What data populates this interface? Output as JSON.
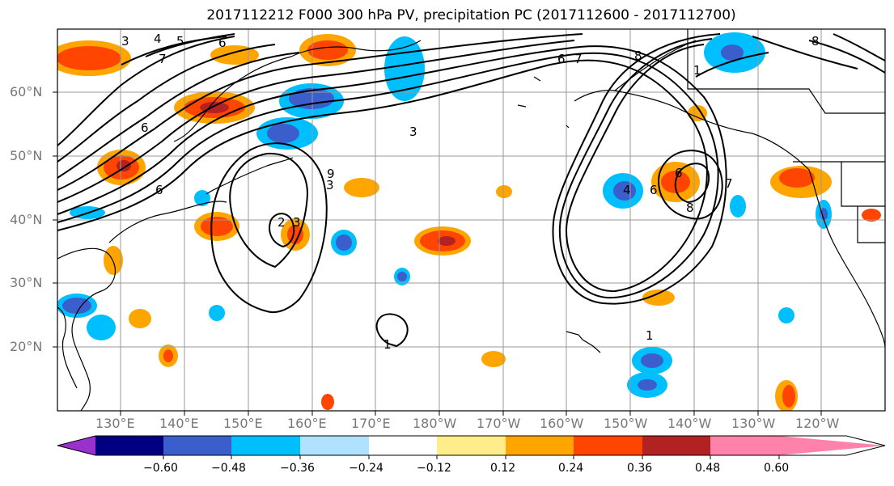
{
  "title": "2017112212 F000 300 hPa PV, precipitation PC (2017112600 - 2017112700)",
  "lat_labels": [
    "60°N",
    "50°N",
    "40°N",
    "30°N",
    "20°N"
  ],
  "lon_labels": [
    "130°E",
    "140°E",
    "150°E",
    "160°E",
    "170°E",
    "180°W",
    "170°W",
    "160°W",
    "150°W",
    "140°W",
    "130°W",
    "120°W"
  ],
  "contour_labels": [
    "3",
    "4",
    "5",
    "6",
    "7",
    "6",
    "6",
    "3",
    "3",
    "3",
    "2",
    "1",
    "1",
    "6",
    "7",
    "8",
    "1",
    "8",
    "4",
    "6",
    "8",
    "7",
    "6",
    "9"
  ],
  "colorbar": {
    "colors": [
      "#9932cc",
      "#000080",
      "#3a5fcd",
      "#00bfff",
      "#b0e2ff",
      "#ffffff",
      "#ffec8b",
      "#ffa500",
      "#ff4500",
      "#b22222",
      "#ff82ab"
    ],
    "tick_labels": [
      "−0.60",
      "−0.48",
      "−0.36",
      "−0.24",
      "−0.12",
      "0.12",
      "0.24",
      "0.36",
      "0.48",
      "0.60"
    ]
  },
  "field_colors": {
    "land_outline": "#000000",
    "grid": "#999999",
    "contour": "#000000"
  }
}
